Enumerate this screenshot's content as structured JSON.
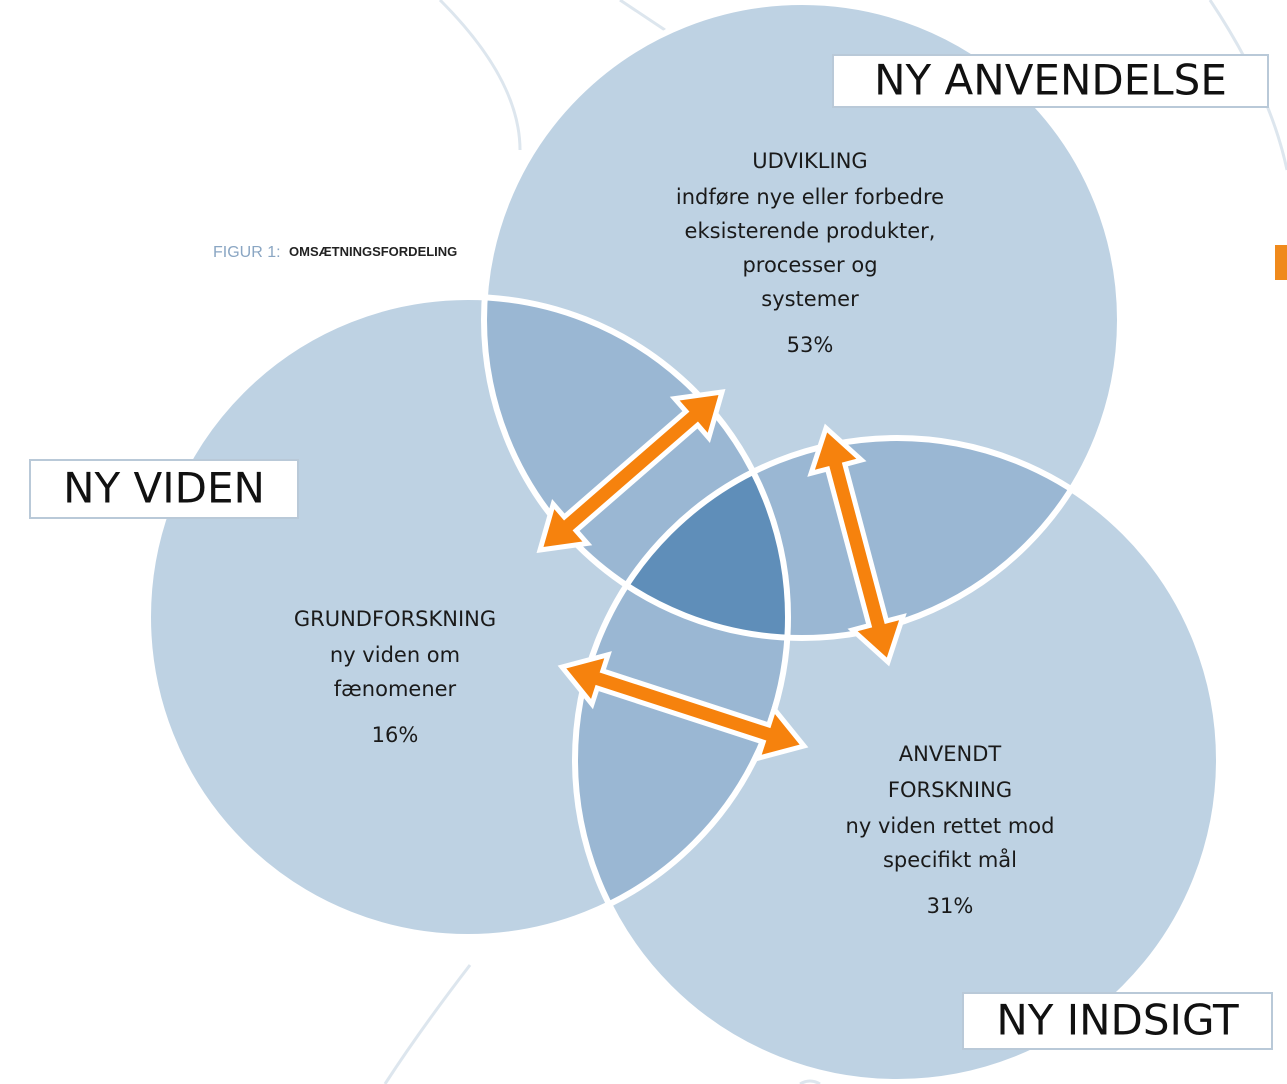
{
  "figure": {
    "prefix": "FIGUR 1:",
    "title": "OMSÆTNINGSFORDELING"
  },
  "circles": [
    {
      "label": "NY ANVENDELSE",
      "heading": [
        "UDVIKLING"
      ],
      "description": [
        "indføre nye eller forbedre",
        "eksisterende produkter,",
        "processer og",
        "systemer"
      ],
      "share": "53%"
    },
    {
      "label": "NY VIDEN",
      "heading": [
        "GRUNDFORSKNING"
      ],
      "description": [
        "ny viden om",
        "fænomener"
      ],
      "share": "16%"
    },
    {
      "label": "NY INDSIGT",
      "heading": [
        "ANVENDT",
        "FORSKNING"
      ],
      "description": [
        "ny viden rettet mod",
        "specifikt mål"
      ],
      "share": "31%"
    }
  ]
}
